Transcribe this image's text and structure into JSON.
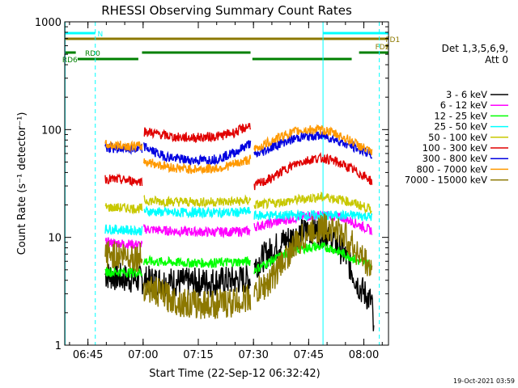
{
  "chart_data": {
    "type": "line",
    "title": "RHESSI Observing Summary Count Rates",
    "xlabel": "Start Time (22-Sep-12 06:32:42)",
    "ylabel": "Count Rate (s⁻¹ detector⁻¹)",
    "y_scale": "log",
    "ylim": [
      1,
      1000
    ],
    "xlim_minutes": [
      6.0,
      94.0
    ],
    "x_ticks": [
      {
        "label": "06:45",
        "min": 12.3
      },
      {
        "label": "07:00",
        "min": 27.3
      },
      {
        "label": "07:15",
        "min": 42.3
      },
      {
        "label": "07:30",
        "min": 57.3
      },
      {
        "label": "07:45",
        "min": 72.3
      },
      {
        "label": "08:00",
        "min": 87.3
      }
    ],
    "y_ticks": [
      {
        "label": "1",
        "value": 1
      },
      {
        "label": "10",
        "value": 10
      },
      {
        "label": "100",
        "value": 100
      },
      {
        "label": "1000",
        "value": 1000
      }
    ],
    "legend_header": [
      "Det 1,3,5,6,9,",
      "Att 0"
    ],
    "legend_position": "right",
    "timestamp": "19-Oct-2021 03:59",
    "series": [
      {
        "name": "3 - 6 keV",
        "color": "#000000",
        "segments": [
          {
            "t": [
              17,
              22,
              28,
              34,
              40,
              46,
              52.5,
              56.5
            ],
            "v": [
              4.5,
              4.2,
              4.0,
              3.9,
              3.8,
              3.9,
              4.0,
              4.2
            ]
          },
          {
            "t": [
              57.5,
              61,
              65,
              69,
              72,
              75,
              78,
              82,
              86,
              89.5,
              90
            ],
            "v": [
              5.5,
              7,
              9,
              10.5,
              11.5,
              11.5,
              10.5,
              7,
              3.5,
              2.5,
              1.2
            ]
          }
        ]
      },
      {
        "name": "6 - 12 keV",
        "color": "#ff00ff",
        "segments": [
          {
            "t": [
              17,
              27
            ],
            "v": [
              9.0,
              8.5
            ]
          },
          {
            "t": [
              27.5,
              34,
              40,
              46,
              52.5,
              56.5
            ],
            "v": [
              12,
              11.5,
              11.3,
              11.2,
              11.3,
              11.5
            ]
          },
          {
            "t": [
              57.5,
              62,
              66,
              70,
              74,
              78,
              82,
              86,
              89.5
            ],
            "v": [
              12.5,
              13.5,
              14.5,
              15.5,
              16,
              16,
              15,
              13,
              11.5
            ]
          }
        ]
      },
      {
        "name": "12 - 25 keV",
        "color": "#00ff00",
        "segments": [
          {
            "t": [
              17,
              27
            ],
            "v": [
              4.8,
              4.7
            ]
          },
          {
            "t": [
              27.5,
              34,
              40,
              46,
              52.5,
              56.5
            ],
            "v": [
              6.0,
              5.9,
              5.8,
              5.8,
              5.9,
              6.0
            ]
          },
          {
            "t": [
              57.5,
              62,
              66,
              70,
              74,
              78,
              82,
              86,
              89.5
            ],
            "v": [
              5.0,
              6.0,
              7.0,
              7.8,
              8.2,
              8.0,
              7.0,
              6.0,
              5.5
            ]
          }
        ]
      },
      {
        "name": "25 - 50 keV",
        "color": "#00ffff",
        "segments": [
          {
            "t": [
              17,
              27
            ],
            "v": [
              12,
              11.5
            ]
          },
          {
            "t": [
              27.5,
              34,
              40,
              46,
              52.5,
              56.5
            ],
            "v": [
              17.5,
              17,
              17,
              17,
              17,
              17.5
            ]
          },
          {
            "t": [
              57.5,
              62,
              66,
              70,
              74,
              78,
              82,
              86,
              89.5
            ],
            "v": [
              16,
              16,
              16,
              16,
              16,
              16,
              16,
              16,
              15.5
            ]
          }
        ]
      },
      {
        "name": "50 - 100 keV",
        "color": "#c8c800",
        "segments": [
          {
            "t": [
              17,
              27
            ],
            "v": [
              19,
              18.5
            ]
          },
          {
            "t": [
              27.5,
              34,
              40,
              46,
              52.5,
              56.5
            ],
            "v": [
              22,
              21.5,
              21.3,
              21.3,
              21.5,
              22
            ]
          },
          {
            "t": [
              57.5,
              62,
              66,
              70,
              74,
              78,
              82,
              86,
              89.5
            ],
            "v": [
              20,
              20.5,
              21.5,
              22.5,
              23.5,
              23.5,
              22,
              20,
              18
            ]
          }
        ]
      },
      {
        "name": "100 - 300 keV",
        "color": "#e00000",
        "segments": [
          {
            "t": [
              17,
              27
            ],
            "v": [
              35,
              33
            ]
          },
          {
            "t": [
              27.5,
              32,
              36,
              40,
              44,
              48,
              52.5,
              56.5
            ],
            "v": [
              97,
              90,
              85,
              84,
              85,
              87,
              95,
              110
            ]
          },
          {
            "t": [
              57.5,
              62,
              66,
              70,
              74,
              77,
              80,
              84,
              88,
              89.5
            ],
            "v": [
              30,
              35,
              43,
              50,
              54,
              54,
              50,
              43,
              36,
              33
            ]
          }
        ]
      },
      {
        "name": "300 - 800 keV",
        "color": "#0000e0",
        "segments": [
          {
            "t": [
              17,
              27
            ],
            "v": [
              68,
              65
            ]
          },
          {
            "t": [
              27.5,
              32,
              36,
              40,
              44,
              48,
              52.5,
              56.5
            ],
            "v": [
              70,
              58,
              54,
              52,
              52,
              54,
              62,
              75
            ]
          },
          {
            "t": [
              57.5,
              62,
              66,
              70,
              74,
              77,
              80,
              84,
              88,
              89.5
            ],
            "v": [
              57,
              68,
              78,
              85,
              88,
              86,
              80,
              70,
              62,
              58
            ]
          }
        ]
      },
      {
        "name": "800 - 7000 keV",
        "color": "#ff9900",
        "segments": [
          {
            "t": [
              17,
              27
            ],
            "v": [
              72,
              70
            ]
          },
          {
            "t": [
              27.5,
              32,
              36,
              40,
              44,
              48,
              52.5,
              56.5
            ],
            "v": [
              51,
              47,
              44,
              43,
              43,
              44,
              48,
              53
            ]
          },
          {
            "t": [
              57.5,
              62,
              66,
              70,
              74,
              77,
              80,
              84,
              88,
              89.5
            ],
            "v": [
              65,
              78,
              90,
              98,
              100,
              98,
              90,
              78,
              65,
              60
            ]
          }
        ]
      },
      {
        "name": "7000 - 15000 keV",
        "color": "#8c7800",
        "segments": [
          {
            "t": [
              17,
              22,
              27
            ],
            "v": [
              7.0,
              6.8,
              6.5
            ]
          },
          {
            "t": [
              27.5,
              30,
              33,
              36,
              40,
              44,
              48,
              52,
              56.5
            ],
            "v": [
              3.5,
              3.2,
              2.9,
              2.6,
              2.4,
              2.4,
              2.4,
              2.5,
              2.8
            ]
          },
          {
            "t": [
              57.5,
              62,
              66,
              70,
              74,
              78,
              82,
              86,
              89.5
            ],
            "v": [
              2.9,
              4.0,
              6.5,
              9.5,
              12,
              12.5,
              10.5,
              7.0,
              5.0
            ]
          }
        ]
      }
    ],
    "flags": [
      {
        "name": "N",
        "color": "#00ffff",
        "row": 0,
        "segments": [
          [
            6.0,
            14.3
          ],
          [
            76.2,
            94.0
          ]
        ],
        "label_at": 14.9
      },
      {
        "name": "FD1",
        "color": "#8c7800",
        "row": 1,
        "segments": [
          [
            6.0,
            94.0
          ]
        ],
        "label_at": 93.2
      },
      {
        "name": "FD2",
        "color": "#8c7800",
        "row": 2,
        "segments": [
          [
            93.2,
            94.0
          ]
        ],
        "label_at": 90.4
      },
      {
        "name": "RD0",
        "color": "#008000",
        "row": 3,
        "segments": [
          [
            6.0,
            9.0
          ],
          [
            27.0,
            56.5
          ],
          [
            86.0,
            94.0
          ]
        ],
        "label_at": 11.5
      },
      {
        "name": "RD6",
        "color": "#008000",
        "row": 4,
        "segments": [
          [
            9.5,
            26.0
          ],
          [
            57.0,
            84.0
          ]
        ],
        "label_at": 5.3
      }
    ],
    "vertical_markers": [
      {
        "min": 6.1,
        "color": "#00ffff",
        "style": "solid"
      },
      {
        "min": 14.3,
        "color": "#00ffff",
        "style": "dashed"
      },
      {
        "min": 76.2,
        "color": "#00ffff",
        "style": "solid"
      },
      {
        "min": 91.5,
        "color": "#00ffff",
        "style": "dashed"
      }
    ]
  }
}
